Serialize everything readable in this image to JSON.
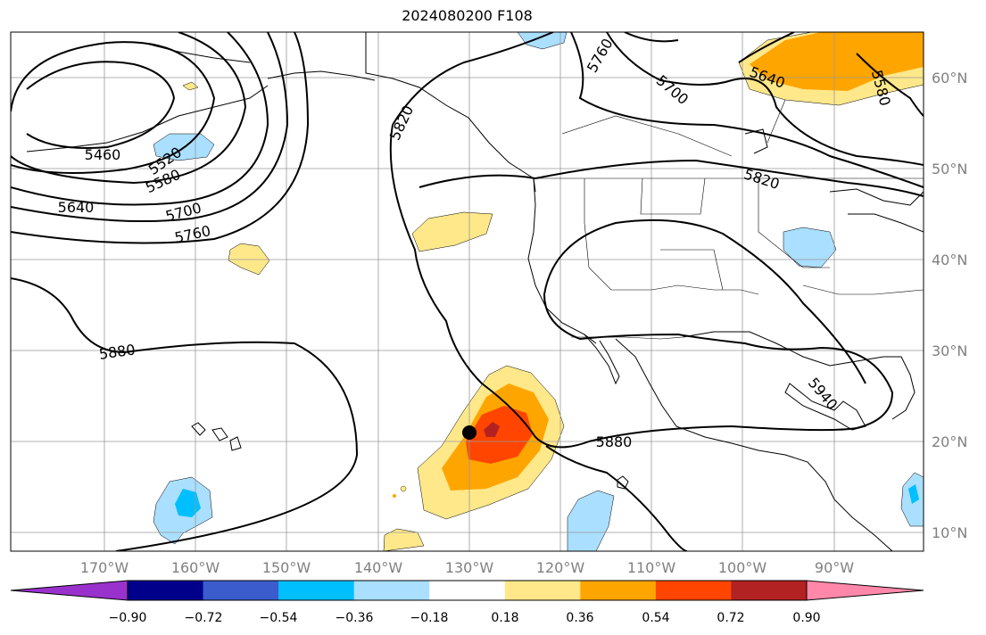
{
  "title": "2024080200 F108",
  "map": {
    "projection": "PlateCarree",
    "lon_range": [
      180,
      80
    ],
    "lat_range": [
      8,
      65
    ],
    "gridlines": true,
    "lon_ticks": [
      "170°W",
      "160°W",
      "150°W",
      "140°W",
      "130°W",
      "120°W",
      "110°W",
      "100°W",
      "90°W"
    ],
    "lat_ticks": [
      "60°N",
      "50°N",
      "40°N",
      "30°N",
      "20°N",
      "10°N"
    ],
    "contour_labels": [
      {
        "text": "5460",
        "id": "c5460"
      },
      {
        "text": "5520",
        "id": "c5520"
      },
      {
        "text": "5580",
        "id": "c5580w"
      },
      {
        "text": "5640",
        "id": "c5640w"
      },
      {
        "text": "5700",
        "id": "c5700w"
      },
      {
        "text": "5760",
        "id": "c5760w"
      },
      {
        "text": "5880",
        "id": "c5880w"
      },
      {
        "text": "5820",
        "id": "c5820ak"
      },
      {
        "text": "5760",
        "id": "c5760n"
      },
      {
        "text": "5700",
        "id": "c5700n"
      },
      {
        "text": "5640",
        "id": "c5640e"
      },
      {
        "text": "5580",
        "id": "c5580e"
      },
      {
        "text": "5820",
        "id": "c5820e"
      },
      {
        "text": "5880",
        "id": "c5880e"
      },
      {
        "text": "5940",
        "id": "c5940"
      }
    ],
    "marker": {
      "lon": -130,
      "lat": 21
    }
  },
  "colorbar": {
    "colors": [
      "#9932cc",
      "#00008b",
      "#3a5ccc",
      "#00bfff",
      "#aadfff",
      "#ffffff",
      "#ffe88a",
      "#ffa500",
      "#ff4500",
      "#b22222",
      "#ff88aa"
    ],
    "ticks": [
      "−0.90",
      "−0.72",
      "−0.54",
      "−0.36",
      "−0.18",
      "0.18",
      "0.36",
      "0.54",
      "0.72",
      "0.90"
    ]
  }
}
